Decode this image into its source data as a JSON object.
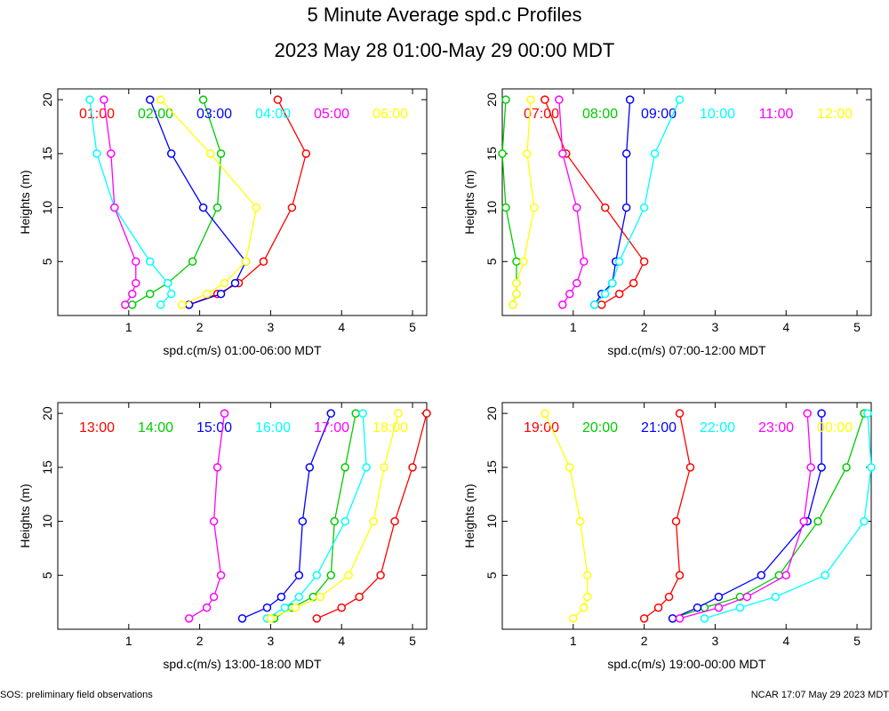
{
  "title": "5 Minute Average spd.c Profiles",
  "subtitle": "2023 May 28 01:00-May 29 00:00 MDT",
  "footer_left": "SOS: preliminary field observations",
  "footer_right": "NCAR 17:07 May 29 2023 MDT",
  "chart_data": [
    {
      "type": "line",
      "xlabel": "spd.c(m/s) 01:00-06:00 MDT",
      "ylabel": "Heights (m)",
      "xlim": [
        0,
        5.2
      ],
      "ylim": [
        0,
        21
      ],
      "xticks": [
        "1",
        "2",
        "3",
        "4",
        "5"
      ],
      "yticks": [
        "5",
        "10",
        "15",
        "20"
      ],
      "series": [
        {
          "name": "01:00",
          "color": "#ff0000",
          "heights": [
            1,
            2,
            3,
            5,
            10,
            15,
            20
          ],
          "speeds": [
            1.85,
            2.25,
            2.55,
            2.9,
            3.3,
            3.5,
            3.1
          ]
        },
        {
          "name": "02:00",
          "color": "#00cc00",
          "heights": [
            1,
            2,
            3,
            5,
            10,
            15,
            20
          ],
          "speeds": [
            1.05,
            1.3,
            1.55,
            1.9,
            2.25,
            2.3,
            2.05
          ]
        },
        {
          "name": "03:00",
          "color": "#0000ff",
          "heights": [
            1,
            2,
            3,
            5,
            10,
            15,
            20
          ],
          "speeds": [
            1.85,
            2.3,
            2.5,
            2.65,
            2.05,
            1.6,
            1.3
          ]
        },
        {
          "name": "04:00",
          "color": "#00ffff",
          "heights": [
            1,
            2,
            3,
            5,
            10,
            15,
            20
          ],
          "speeds": [
            1.45,
            1.6,
            1.55,
            1.3,
            0.8,
            0.55,
            0.45
          ]
        },
        {
          "name": "05:00",
          "color": "#ff00ff",
          "heights": [
            1,
            2,
            3,
            5,
            10,
            15,
            20
          ],
          "speeds": [
            0.95,
            1.05,
            1.1,
            1.1,
            0.8,
            0.75,
            0.65
          ]
        },
        {
          "name": "06:00",
          "color": "#ffff00",
          "heights": [
            1,
            2,
            3,
            5,
            10,
            15,
            20
          ],
          "speeds": [
            1.75,
            2.1,
            2.35,
            2.65,
            2.8,
            2.15,
            1.45
          ]
        }
      ]
    },
    {
      "type": "line",
      "xlabel": "spd.c(m/s) 07:00-12:00 MDT",
      "ylabel": "Heights (m)",
      "xlim": [
        0,
        5.2
      ],
      "ylim": [
        0,
        21
      ],
      "xticks": [
        "1",
        "2",
        "3",
        "4",
        "5"
      ],
      "yticks": [
        "5",
        "10",
        "15",
        "20"
      ],
      "series": [
        {
          "name": "07:00",
          "color": "#ff0000",
          "heights": [
            1,
            2,
            3,
            5,
            10,
            15,
            20
          ],
          "speeds": [
            1.4,
            1.65,
            1.85,
            2.0,
            1.45,
            0.9,
            0.6
          ]
        },
        {
          "name": "08:00",
          "color": "#00cc00",
          "heights": [
            1,
            2,
            3,
            5,
            10,
            15,
            20
          ],
          "speeds": [
            0.15,
            0.2,
            0.2,
            0.2,
            0.05,
            0.0,
            0.05
          ]
        },
        {
          "name": "09:00",
          "color": "#0000ff",
          "heights": [
            1,
            2,
            3,
            5,
            10,
            15,
            20
          ],
          "speeds": [
            1.3,
            1.4,
            1.55,
            1.6,
            1.75,
            1.75,
            1.8
          ]
        },
        {
          "name": "10:00",
          "color": "#00ffff",
          "heights": [
            1,
            2,
            3,
            5,
            10,
            15,
            20
          ],
          "speeds": [
            1.3,
            1.45,
            1.55,
            1.65,
            2.0,
            2.15,
            2.5
          ]
        },
        {
          "name": "11:00",
          "color": "#ff00ff",
          "heights": [
            1,
            2,
            3,
            5,
            10,
            15,
            20
          ],
          "speeds": [
            0.85,
            0.95,
            1.05,
            1.15,
            1.05,
            0.85,
            0.8
          ]
        },
        {
          "name": "12:00",
          "color": "#ffff00",
          "heights": [
            1,
            2,
            3,
            5,
            10,
            15,
            20
          ],
          "speeds": [
            0.15,
            0.2,
            0.2,
            0.3,
            0.45,
            0.35,
            0.4
          ]
        }
      ]
    },
    {
      "type": "line",
      "xlabel": "spd.c(m/s) 13:00-18:00 MDT",
      "ylabel": "Heights (m)",
      "xlim": [
        0,
        5.2
      ],
      "ylim": [
        0,
        21
      ],
      "xticks": [
        "1",
        "2",
        "3",
        "4",
        "5"
      ],
      "yticks": [
        "5",
        "10",
        "15",
        "20"
      ],
      "series": [
        {
          "name": "13:00",
          "color": "#ff0000",
          "heights": [
            1,
            2,
            3,
            5,
            10,
            15,
            20
          ],
          "speeds": [
            3.65,
            4.0,
            4.25,
            4.55,
            4.75,
            5.0,
            5.2
          ]
        },
        {
          "name": "14:00",
          "color": "#00cc00",
          "heights": [
            1,
            2,
            3,
            5,
            10,
            15,
            20
          ],
          "speeds": [
            3.05,
            3.3,
            3.6,
            3.85,
            3.9,
            4.05,
            4.2
          ]
        },
        {
          "name": "15:00",
          "color": "#0000ff",
          "heights": [
            1,
            2,
            3,
            5,
            10,
            15,
            20
          ],
          "speeds": [
            2.6,
            2.95,
            3.15,
            3.4,
            3.45,
            3.55,
            3.85
          ]
        },
        {
          "name": "16:00",
          "color": "#00ffff",
          "heights": [
            1,
            2,
            3,
            5,
            10,
            15,
            20
          ],
          "speeds": [
            2.95,
            3.2,
            3.4,
            3.65,
            4.05,
            4.35,
            4.3
          ]
        },
        {
          "name": "17:00",
          "color": "#ff00ff",
          "heights": [
            1,
            2,
            3,
            5,
            10,
            15,
            20
          ],
          "speeds": [
            1.85,
            2.1,
            2.2,
            2.3,
            2.2,
            2.25,
            2.35
          ]
        },
        {
          "name": "18:00",
          "color": "#ffff00",
          "heights": [
            1,
            2,
            3,
            5,
            10,
            15,
            20
          ],
          "speeds": [
            3.0,
            3.35,
            3.7,
            4.1,
            4.45,
            4.6,
            4.8
          ]
        }
      ]
    },
    {
      "type": "line",
      "xlabel": "spd.c(m/s) 19:00-00:00 MDT",
      "ylabel": "Heights (m)",
      "xlim": [
        0,
        5.2
      ],
      "ylim": [
        0,
        21
      ],
      "xticks": [
        "1",
        "2",
        "3",
        "4",
        "5"
      ],
      "yticks": [
        "5",
        "10",
        "15",
        "20"
      ],
      "series": [
        {
          "name": "19:00",
          "color": "#ff0000",
          "heights": [
            1,
            2,
            3,
            5,
            10,
            15,
            20
          ],
          "speeds": [
            2.0,
            2.2,
            2.35,
            2.5,
            2.45,
            2.65,
            2.5
          ]
        },
        {
          "name": "20:00",
          "color": "#00cc00",
          "heights": [
            1,
            2,
            3,
            5,
            10,
            15,
            20
          ],
          "speeds": [
            2.4,
            2.85,
            3.35,
            3.9,
            4.45,
            4.85,
            5.1
          ]
        },
        {
          "name": "21:00",
          "color": "#0000ff",
          "heights": [
            1,
            2,
            3,
            5,
            10,
            15,
            20
          ],
          "speeds": [
            2.4,
            2.75,
            3.05,
            3.65,
            4.3,
            4.5,
            4.5
          ]
        },
        {
          "name": "22:00",
          "color": "#00ffff",
          "heights": [
            1,
            2,
            3,
            5,
            10,
            15,
            20
          ],
          "speeds": [
            2.85,
            3.35,
            3.85,
            4.55,
            5.1,
            5.2,
            5.15
          ]
        },
        {
          "name": "23:00",
          "color": "#ff00ff",
          "heights": [
            1,
            2,
            3,
            5,
            10,
            15,
            20
          ],
          "speeds": [
            2.5,
            3.05,
            3.45,
            4.0,
            4.25,
            4.35,
            4.3
          ]
        },
        {
          "name": "00:00",
          "color": "#ffff00",
          "heights": [
            1,
            2,
            3,
            5,
            10,
            15,
            20
          ],
          "speeds": [
            1.0,
            1.15,
            1.2,
            1.2,
            1.1,
            0.95,
            0.6
          ]
        }
      ]
    }
  ]
}
